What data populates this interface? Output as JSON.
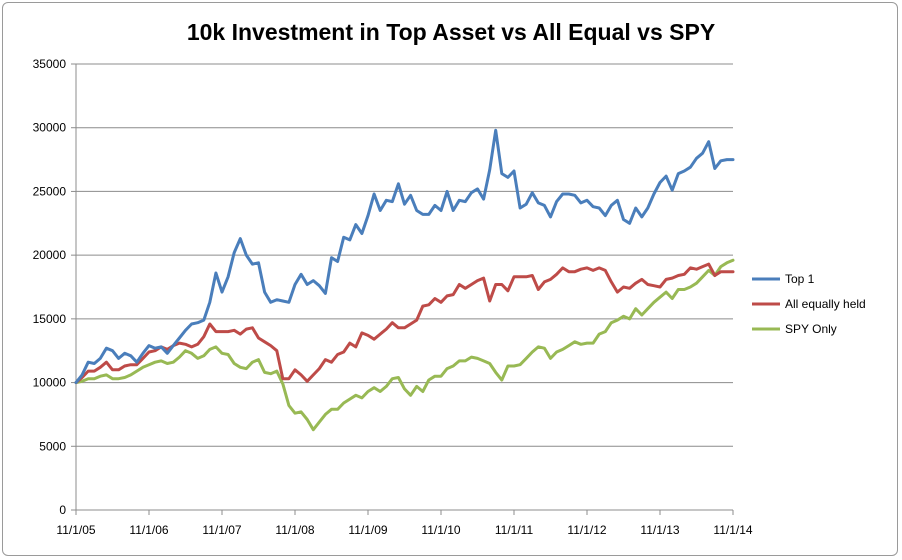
{
  "chart_data": {
    "type": "line",
    "title": "10k Investment in Top Asset vs All Equal vs SPY",
    "xlabel": "",
    "ylabel": "",
    "ylim": [
      0,
      35000
    ],
    "yticks": [
      0,
      5000,
      10000,
      15000,
      20000,
      25000,
      30000,
      35000
    ],
    "xticks": [
      "11/1/05",
      "11/1/06",
      "11/1/07",
      "11/1/08",
      "11/1/09",
      "11/1/10",
      "11/1/11",
      "11/1/12",
      "11/1/13",
      "11/1/14"
    ],
    "grid": "horizontal",
    "legend_position": "right",
    "series": [
      {
        "name": "Top 1",
        "color": "#4a7ebb",
        "x": [
          "2005-11",
          "2005-12",
          "2006-01",
          "2006-02",
          "2006-03",
          "2006-04",
          "2006-05",
          "2006-06",
          "2006-07",
          "2006-08",
          "2006-09",
          "2006-10",
          "2006-11",
          "2006-12",
          "2007-01",
          "2007-02",
          "2007-03",
          "2007-04",
          "2007-05",
          "2007-06",
          "2007-07",
          "2007-08",
          "2007-09",
          "2007-10",
          "2007-11",
          "2007-12",
          "2008-01",
          "2008-02",
          "2008-03",
          "2008-04",
          "2008-05",
          "2008-06",
          "2008-07",
          "2008-08",
          "2008-09",
          "2008-10",
          "2008-11",
          "2008-12",
          "2009-01",
          "2009-02",
          "2009-03",
          "2009-04",
          "2009-05",
          "2009-06",
          "2009-07",
          "2009-08",
          "2009-09",
          "2009-10",
          "2009-11",
          "2009-12",
          "2010-01",
          "2010-02",
          "2010-03",
          "2010-04",
          "2010-05",
          "2010-06",
          "2010-07",
          "2010-08",
          "2010-09",
          "2010-10",
          "2010-11",
          "2010-12",
          "2011-01",
          "2011-02",
          "2011-03",
          "2011-04",
          "2011-05",
          "2011-06",
          "2011-07",
          "2011-08",
          "2011-09",
          "2011-10",
          "2011-11",
          "2011-12",
          "2012-01",
          "2012-02",
          "2012-03",
          "2012-04",
          "2012-05",
          "2012-06",
          "2012-07",
          "2012-08",
          "2012-09",
          "2012-10",
          "2012-11",
          "2012-12",
          "2013-01",
          "2013-02",
          "2013-03",
          "2013-04",
          "2013-05",
          "2013-06",
          "2013-07",
          "2013-08",
          "2013-09",
          "2013-10",
          "2013-11",
          "2013-12",
          "2014-01",
          "2014-02",
          "2014-03",
          "2014-04",
          "2014-05",
          "2014-06",
          "2014-07",
          "2014-08",
          "2014-09",
          "2014-10",
          "2014-11"
        ],
        "values": [
          10000,
          10600,
          11600,
          11500,
          11900,
          12700,
          12500,
          11900,
          12300,
          12100,
          11600,
          12300,
          12900,
          12700,
          12800,
          12300,
          12900,
          13500,
          14100,
          14600,
          14700,
          14900,
          16300,
          18600,
          17100,
          18300,
          20200,
          21300,
          20000,
          19300,
          19400,
          17100,
          16300,
          16500,
          16400,
          16300,
          17700,
          18500,
          17700,
          18000,
          17600,
          17000,
          19800,
          19500,
          21400,
          21200,
          22400,
          21700,
          23100,
          24800,
          23500,
          24300,
          24200,
          25600,
          24000,
          24700,
          23500,
          23200,
          23200,
          23900,
          23500,
          25000,
          23500,
          24300,
          24200,
          24900,
          25200,
          24400,
          26700,
          29800,
          26400,
          26100,
          26600,
          23700,
          24000,
          24900,
          24100,
          23900,
          23000,
          24200,
          24800,
          24800,
          24700,
          24100,
          24300,
          23800,
          23700,
          23100,
          23900,
          24300,
          22800,
          22500,
          23700,
          23000,
          23700,
          24800,
          25700,
          26200,
          25100,
          26400,
          26600,
          26900,
          27600,
          28000,
          28900,
          26800,
          27400,
          27500,
          27500
        ]
      },
      {
        "name": "All equally held",
        "color": "#be4b48",
        "x": [
          "2005-11",
          "2005-12",
          "2006-01",
          "2006-02",
          "2006-03",
          "2006-04",
          "2006-05",
          "2006-06",
          "2006-07",
          "2006-08",
          "2006-09",
          "2006-10",
          "2006-11",
          "2006-12",
          "2007-01",
          "2007-02",
          "2007-03",
          "2007-04",
          "2007-05",
          "2007-06",
          "2007-07",
          "2007-08",
          "2007-09",
          "2007-10",
          "2007-11",
          "2007-12",
          "2008-01",
          "2008-02",
          "2008-03",
          "2008-04",
          "2008-05",
          "2008-06",
          "2008-07",
          "2008-08",
          "2008-09",
          "2008-10",
          "2008-11",
          "2008-12",
          "2009-01",
          "2009-02",
          "2009-03",
          "2009-04",
          "2009-05",
          "2009-06",
          "2009-07",
          "2009-08",
          "2009-09",
          "2009-10",
          "2009-11",
          "2009-12",
          "2010-01",
          "2010-02",
          "2010-03",
          "2010-04",
          "2010-05",
          "2010-06",
          "2010-07",
          "2010-08",
          "2010-09",
          "2010-10",
          "2010-11",
          "2010-12",
          "2011-01",
          "2011-02",
          "2011-03",
          "2011-04",
          "2011-05",
          "2011-06",
          "2011-07",
          "2011-08",
          "2011-09",
          "2011-10",
          "2011-11",
          "2011-12",
          "2012-01",
          "2012-02",
          "2012-03",
          "2012-04",
          "2012-05",
          "2012-06",
          "2012-07",
          "2012-08",
          "2012-09",
          "2012-10",
          "2012-11",
          "2012-12",
          "2013-01",
          "2013-02",
          "2013-03",
          "2013-04",
          "2013-05",
          "2013-06",
          "2013-07",
          "2013-08",
          "2013-09",
          "2013-10",
          "2013-11",
          "2013-12",
          "2014-01",
          "2014-02",
          "2014-03",
          "2014-04",
          "2014-05",
          "2014-06",
          "2014-07",
          "2014-08",
          "2014-09",
          "2014-10",
          "2014-11"
        ],
        "values": [
          10000,
          10400,
          10900,
          10900,
          11200,
          11600,
          11000,
          11000,
          11300,
          11400,
          11400,
          11900,
          12400,
          12500,
          12800,
          12600,
          12900,
          13100,
          13000,
          12800,
          13000,
          13600,
          14600,
          14000,
          14000,
          14000,
          14100,
          13800,
          14200,
          14300,
          13500,
          13200,
          12900,
          12500,
          10300,
          10300,
          11000,
          10600,
          10100,
          10600,
          11100,
          11800,
          11600,
          12200,
          12400,
          13100,
          12800,
          13900,
          13700,
          13400,
          13800,
          14200,
          14700,
          14300,
          14300,
          14600,
          14900,
          16000,
          16100,
          16600,
          16300,
          16800,
          16900,
          17700,
          17400,
          17700,
          18000,
          18200,
          16400,
          17700,
          17700,
          17200,
          18300,
          18300,
          18300,
          18400,
          17300,
          17900,
          18100,
          18500,
          19000,
          18700,
          18700,
          18900,
          19000,
          18800,
          19000,
          18800,
          17900,
          17100,
          17500,
          17400,
          17800,
          18100,
          17700,
          17600,
          17500,
          18100,
          18200,
          18400,
          18500,
          19000,
          18900,
          19100,
          19300,
          18400,
          18700,
          18700,
          18700
        ]
      },
      {
        "name": "SPY Only",
        "color": "#98b954",
        "x": [
          "2005-11",
          "2005-12",
          "2006-01",
          "2006-02",
          "2006-03",
          "2006-04",
          "2006-05",
          "2006-06",
          "2006-07",
          "2006-08",
          "2006-09",
          "2006-10",
          "2006-11",
          "2006-12",
          "2007-01",
          "2007-02",
          "2007-03",
          "2007-04",
          "2007-05",
          "2007-06",
          "2007-07",
          "2007-08",
          "2007-09",
          "2007-10",
          "2007-11",
          "2007-12",
          "2008-01",
          "2008-02",
          "2008-03",
          "2008-04",
          "2008-05",
          "2008-06",
          "2008-07",
          "2008-08",
          "2008-09",
          "2008-10",
          "2008-11",
          "2008-12",
          "2009-01",
          "2009-02",
          "2009-03",
          "2009-04",
          "2009-05",
          "2009-06",
          "2009-07",
          "2009-08",
          "2009-09",
          "2009-10",
          "2009-11",
          "2009-12",
          "2010-01",
          "2010-02",
          "2010-03",
          "2010-04",
          "2010-05",
          "2010-06",
          "2010-07",
          "2010-08",
          "2010-09",
          "2010-10",
          "2010-11",
          "2010-12",
          "2011-01",
          "2011-02",
          "2011-03",
          "2011-04",
          "2011-05",
          "2011-06",
          "2011-07",
          "2011-08",
          "2011-09",
          "2011-10",
          "2011-11",
          "2011-12",
          "2012-01",
          "2012-02",
          "2012-03",
          "2012-04",
          "2012-05",
          "2012-06",
          "2012-07",
          "2012-08",
          "2012-09",
          "2012-10",
          "2012-11",
          "2012-12",
          "2013-01",
          "2013-02",
          "2013-03",
          "2013-04",
          "2013-05",
          "2013-06",
          "2013-07",
          "2013-08",
          "2013-09",
          "2013-10",
          "2013-11",
          "2013-12",
          "2014-01",
          "2014-02",
          "2014-03",
          "2014-04",
          "2014-05",
          "2014-06",
          "2014-07",
          "2014-08",
          "2014-09",
          "2014-10",
          "2014-11"
        ],
        "values": [
          10000,
          10100,
          10300,
          10300,
          10500,
          10600,
          10300,
          10300,
          10400,
          10600,
          10900,
          11200,
          11400,
          11600,
          11700,
          11500,
          11600,
          12000,
          12500,
          12300,
          11900,
          12100,
          12600,
          12800,
          12300,
          12200,
          11500,
          11200,
          11100,
          11600,
          11800,
          10800,
          10700,
          10900,
          9900,
          8200,
          7600,
          7700,
          7100,
          6300,
          6900,
          7500,
          7900,
          7900,
          8400,
          8700,
          9000,
          8800,
          9300,
          9600,
          9300,
          9700,
          10300,
          10400,
          9500,
          9000,
          9700,
          9300,
          10200,
          10500,
          10500,
          11100,
          11300,
          11700,
          11700,
          12000,
          11900,
          11700,
          11500,
          10800,
          10200,
          11300,
          11300,
          11400,
          11900,
          12400,
          12800,
          12700,
          11900,
          12400,
          12600,
          12900,
          13200,
          13000,
          13100,
          13100,
          13800,
          14000,
          14700,
          14900,
          15200,
          15000,
          15800,
          15300,
          15800,
          16300,
          16700,
          17100,
          16600,
          17300,
          17300,
          17500,
          17800,
          18300,
          18800,
          18400,
          19100,
          19400,
          19600
        ]
      }
    ]
  }
}
